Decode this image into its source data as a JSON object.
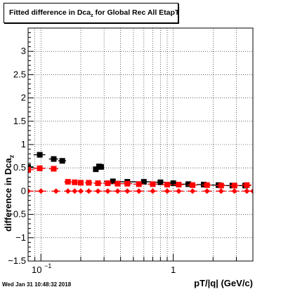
{
  "title": {
    "prefix": "Fitted difference in Dca",
    "sub": "z",
    "suffix": " for Global Rec All EtapT"
  },
  "timestamp": "Wed Jan 31 10:48:32 2018",
  "chart_data": {
    "type": "scatter",
    "xlabel": "pT/|q| (GeV/c)",
    "ylabel": "difference in Dca",
    "ylabel_sub": "z",
    "xscale": "log",
    "xlim": [
      0.08,
      4.0
    ],
    "ylim": [
      -1.5,
      3.5
    ],
    "grid": true,
    "yticks": [
      -1.5,
      -1,
      -0.5,
      0,
      0.5,
      1,
      1.5,
      2,
      2.5,
      3
    ],
    "ytick_labels": [
      "−1.5",
      "−1",
      "−0.5",
      "0",
      "0.5",
      "1",
      "1.5",
      "2",
      "2.5",
      "3"
    ],
    "xtick_labels": [
      {
        "x": 0.1,
        "base": "10",
        "exp": "−1"
      },
      {
        "x": 1.0,
        "label": "1"
      }
    ],
    "series": [
      {
        "color": "#000000",
        "marker": "square",
        "x": [
          0.08,
          0.098,
          0.125,
          0.145,
          0.26,
          0.275,
          0.285,
          0.35,
          0.45,
          0.6,
          0.8,
          1.0,
          1.3,
          1.7,
          2.2,
          2.8,
          3.5
        ],
        "y": [
          0.52,
          0.78,
          0.69,
          0.65,
          0.47,
          0.53,
          0.52,
          0.21,
          0.2,
          0.2,
          0.19,
          0.17,
          0.15,
          0.14,
          0.13,
          0.12,
          0.12
        ],
        "xerr": [
          0.008,
          0.01,
          0.01,
          0.01,
          0.01,
          0.01,
          0.01,
          0.05,
          0.07,
          0.08,
          0.1,
          0.12,
          0.15,
          0.2,
          0.25,
          0.3,
          0.35
        ]
      },
      {
        "color": "#ff0000",
        "marker": "square",
        "x": [
          0.08,
          0.098,
          0.125,
          0.16,
          0.18,
          0.2,
          0.23,
          0.27,
          0.32,
          0.38,
          0.45,
          0.55,
          0.7,
          0.9,
          1.1,
          1.4,
          1.8,
          2.3,
          2.9,
          3.6
        ],
        "y": [
          0.46,
          0.49,
          0.48,
          0.2,
          0.19,
          0.18,
          0.18,
          0.17,
          0.17,
          0.16,
          0.16,
          0.15,
          0.15,
          0.14,
          0.14,
          0.13,
          0.13,
          0.12,
          0.12,
          0.13
        ],
        "xerr": [
          0.008,
          0.01,
          0.01,
          0.01,
          0.01,
          0.01,
          0.015,
          0.02,
          0.025,
          0.03,
          0.04,
          0.05,
          0.06,
          0.08,
          0.1,
          0.12,
          0.15,
          0.2,
          0.25,
          0.3
        ]
      },
      {
        "color": "#ff0000",
        "marker": "diamond",
        "x": [
          0.08,
          0.1,
          0.13,
          0.16,
          0.18,
          0.2,
          0.23,
          0.27,
          0.32,
          0.38,
          0.45,
          0.55,
          0.7,
          0.9,
          1.1,
          1.4,
          1.8,
          2.3,
          2.9,
          3.6,
          4.0
        ],
        "y": [
          0.0,
          0.0,
          0.0,
          0.0,
          0.0,
          0.0,
          0.0,
          0.0,
          0.0,
          0.0,
          0.0,
          0.0,
          0.0,
          0.0,
          0.0,
          0.0,
          0.0,
          0.0,
          0.0,
          0.0,
          0.0
        ],
        "xerr": [
          0.008,
          0.01,
          0.01,
          0.01,
          0.01,
          0.01,
          0.015,
          0.02,
          0.025,
          0.03,
          0.04,
          0.05,
          0.06,
          0.08,
          0.1,
          0.12,
          0.15,
          0.2,
          0.25,
          0.3,
          0.1
        ]
      }
    ]
  }
}
